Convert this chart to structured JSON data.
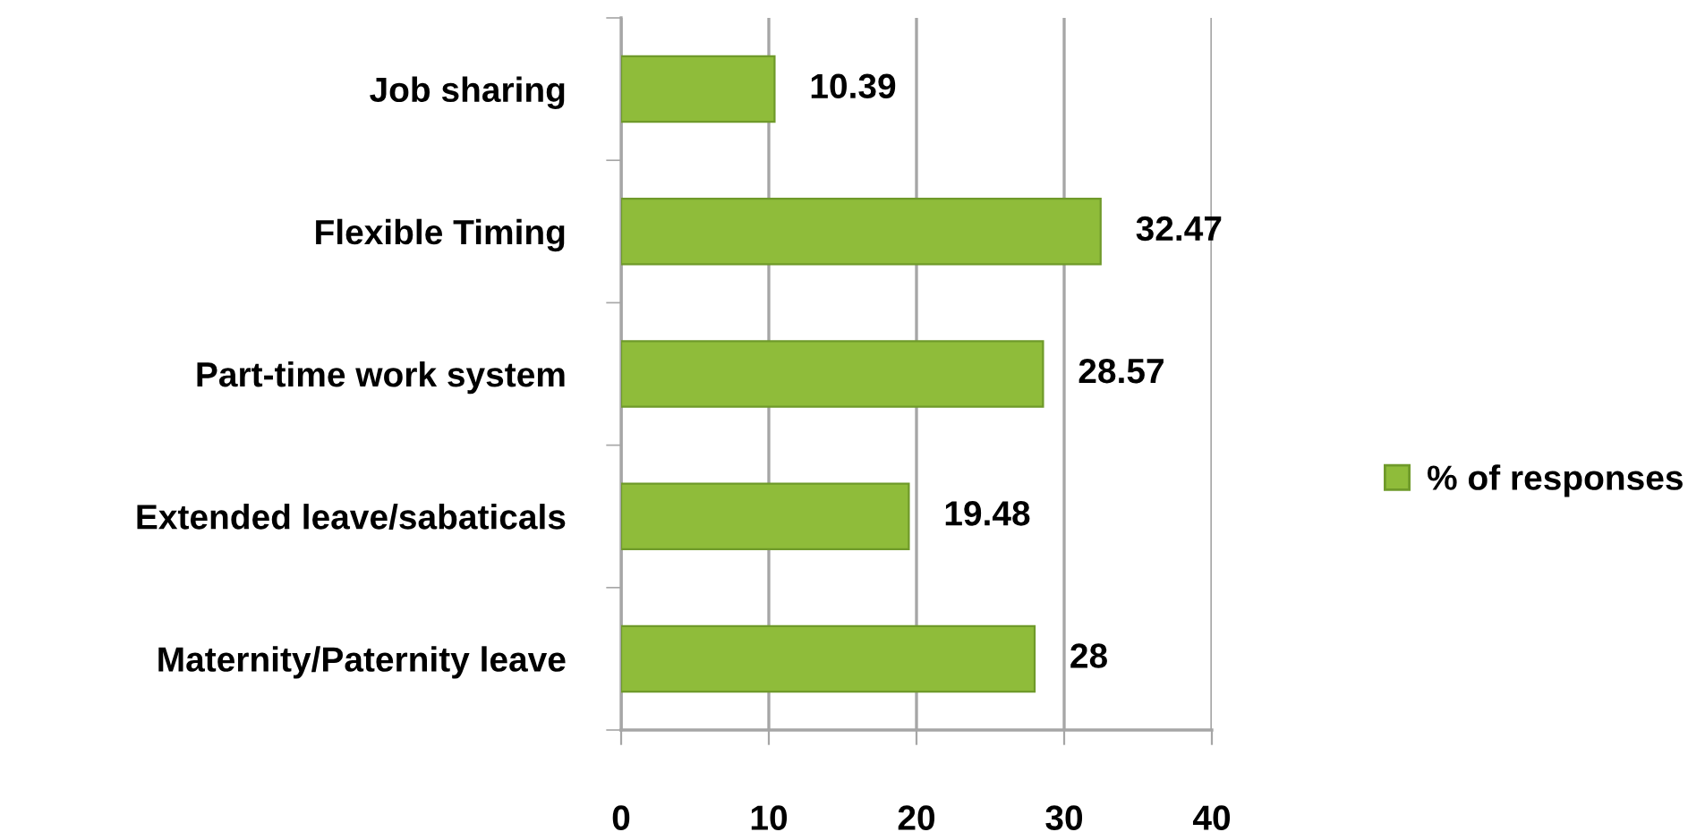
{
  "chart_data": {
    "type": "bar",
    "orientation": "horizontal",
    "categories": [
      "Job sharing",
      "Flexible Timing",
      "Part-time work system",
      "Extended leave/sabaticals",
      "Maternity/Paternity leave"
    ],
    "series": [
      {
        "name": "% of responses",
        "color": "#8fbc3a",
        "values": [
          10.39,
          32.47,
          28.57,
          19.48,
          28
        ]
      }
    ],
    "xlim": [
      0,
      40
    ],
    "xticks": [
      0,
      10,
      20,
      30,
      40
    ],
    "grid": "x",
    "legend": "right",
    "data_labels": true
  }
}
